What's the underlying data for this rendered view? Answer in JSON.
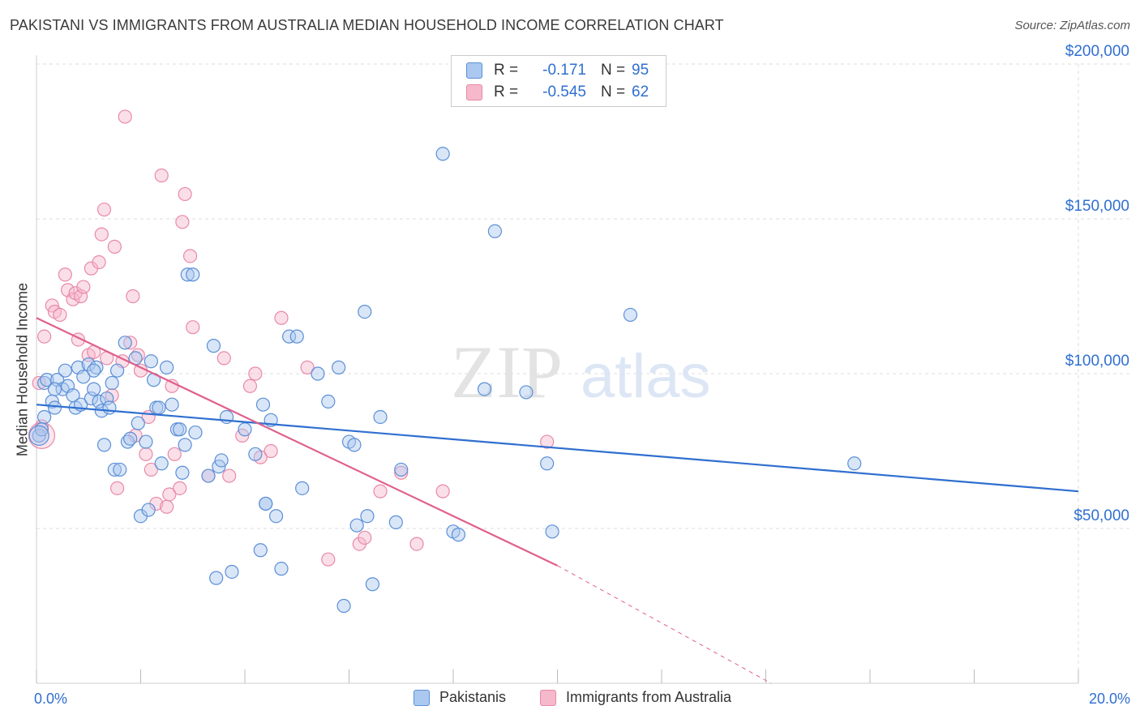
{
  "header": {
    "title": "PAKISTANI VS IMMIGRANTS FROM AUSTRALIA MEDIAN HOUSEHOLD INCOME CORRELATION CHART",
    "source": "Source: ZipAtlas.com"
  },
  "legend": {
    "rows": [
      {
        "r_label": "R =",
        "r_value": "-0.171",
        "n_label": "N =",
        "n_value": "95"
      },
      {
        "r_label": "R =",
        "r_value": "-0.545",
        "n_label": "N =",
        "n_value": "62"
      }
    ],
    "series_names": [
      "Pakistanis",
      "Immigrants from Australia"
    ]
  },
  "watermark": {
    "part1": "ZIP",
    "part2": "atlas"
  },
  "colors": {
    "blue_fill": "#aac8f0",
    "blue_stroke": "#5b8fd6",
    "blue_line": "#2f6fd0",
    "pink_fill": "#f6b8cb",
    "pink_stroke": "#e889a8",
    "pink_line": "#e0608b",
    "tick_text": "#2f6fd0",
    "grid": "#dddddd"
  },
  "chart_data": {
    "type": "scatter",
    "title": "PAKISTANI VS IMMIGRANTS FROM AUSTRALIA MEDIAN HOUSEHOLD INCOME CORRELATION CHART",
    "xlabel": "",
    "ylabel": "Median Household Income",
    "xlim": [
      0,
      20
    ],
    "ylim": [
      0,
      200000
    ],
    "x_tick_labels": [
      "0.0%",
      "20.0%"
    ],
    "y_ticks": [
      50000,
      100000,
      150000,
      200000
    ],
    "y_tick_labels": [
      "$50,000",
      "$100,000",
      "$150,000",
      "$200,000"
    ],
    "grid": true,
    "legend_position": "top-center",
    "series": [
      {
        "name": "Pakistanis",
        "r": -0.171,
        "n": 95,
        "trend": {
          "x": [
            0,
            20
          ],
          "y": [
            90000,
            62000
          ]
        },
        "points": [
          [
            0.05,
            80000
          ],
          [
            0.1,
            82000
          ],
          [
            0.15,
            97000
          ],
          [
            0.2,
            98000
          ],
          [
            0.3,
            91000
          ],
          [
            0.35,
            89000
          ],
          [
            0.4,
            98000
          ],
          [
            0.5,
            95000
          ],
          [
            0.55,
            101000
          ],
          [
            0.6,
            96000
          ],
          [
            0.7,
            93000
          ],
          [
            0.75,
            89000
          ],
          [
            0.8,
            102000
          ],
          [
            0.85,
            90000
          ],
          [
            0.9,
            99000
          ],
          [
            1.0,
            103000
          ],
          [
            1.05,
            92000
          ],
          [
            1.1,
            95000
          ],
          [
            1.15,
            102000
          ],
          [
            1.2,
            91000
          ],
          [
            1.25,
            88000
          ],
          [
            1.3,
            77000
          ],
          [
            1.35,
            92000
          ],
          [
            1.4,
            89000
          ],
          [
            1.45,
            97000
          ],
          [
            1.5,
            69000
          ],
          [
            1.55,
            101000
          ],
          [
            1.6,
            69000
          ],
          [
            1.7,
            110000
          ],
          [
            1.75,
            78000
          ],
          [
            1.8,
            79000
          ],
          [
            1.9,
            105000
          ],
          [
            1.95,
            84000
          ],
          [
            2.0,
            54000
          ],
          [
            2.1,
            78000
          ],
          [
            2.15,
            56000
          ],
          [
            2.2,
            104000
          ],
          [
            2.25,
            98000
          ],
          [
            2.3,
            89000
          ],
          [
            2.35,
            89000
          ],
          [
            2.4,
            71000
          ],
          [
            2.5,
            102000
          ],
          [
            2.6,
            90000
          ],
          [
            2.7,
            82000
          ],
          [
            2.75,
            82000
          ],
          [
            2.8,
            68000
          ],
          [
            2.85,
            77000
          ],
          [
            2.9,
            132000
          ],
          [
            3.0,
            132000
          ],
          [
            3.05,
            81000
          ],
          [
            3.3,
            67000
          ],
          [
            3.4,
            109000
          ],
          [
            3.45,
            34000
          ],
          [
            3.5,
            70000
          ],
          [
            3.55,
            72000
          ],
          [
            3.65,
            86000
          ],
          [
            3.75,
            36000
          ],
          [
            4.0,
            82000
          ],
          [
            4.2,
            74000
          ],
          [
            4.3,
            43000
          ],
          [
            4.35,
            90000
          ],
          [
            4.4,
            58000
          ],
          [
            4.5,
            85000
          ],
          [
            4.6,
            54000
          ],
          [
            4.7,
            37000
          ],
          [
            4.85,
            112000
          ],
          [
            5.0,
            112000
          ],
          [
            5.1,
            63000
          ],
          [
            5.4,
            100000
          ],
          [
            5.6,
            91000
          ],
          [
            5.8,
            102000
          ],
          [
            5.9,
            25000
          ],
          [
            6.0,
            78000
          ],
          [
            6.1,
            77000
          ],
          [
            6.15,
            51000
          ],
          [
            6.3,
            120000
          ],
          [
            6.35,
            54000
          ],
          [
            6.45,
            32000
          ],
          [
            6.6,
            86000
          ],
          [
            6.9,
            52000
          ],
          [
            7.0,
            69000
          ],
          [
            7.8,
            171000
          ],
          [
            8.0,
            49000
          ],
          [
            8.1,
            48000
          ],
          [
            8.6,
            95000
          ],
          [
            8.8,
            146000
          ],
          [
            9.4,
            94000
          ],
          [
            9.8,
            71000
          ],
          [
            9.9,
            49000
          ],
          [
            11.4,
            119000
          ],
          [
            15.7,
            71000
          ],
          [
            0.15,
            86000
          ],
          [
            0.35,
            95000
          ],
          [
            1.1,
            101000
          ],
          [
            4.4,
            58000
          ]
        ]
      },
      {
        "name": "Immigrants from Australia",
        "r": -0.545,
        "n": 62,
        "trend": {
          "x": [
            0,
            10
          ],
          "y": [
            118000,
            38000
          ]
        },
        "trend_extension": {
          "x": [
            10,
            14.1
          ],
          "y": [
            38000,
            0
          ]
        },
        "points": [
          [
            0.05,
            97000
          ],
          [
            0.1,
            83000
          ],
          [
            0.15,
            112000
          ],
          [
            0.3,
            122000
          ],
          [
            0.35,
            120000
          ],
          [
            0.45,
            119000
          ],
          [
            0.55,
            132000
          ],
          [
            0.6,
            127000
          ],
          [
            0.7,
            124000
          ],
          [
            0.75,
            126000
          ],
          [
            0.8,
            111000
          ],
          [
            0.85,
            125000
          ],
          [
            0.9,
            128000
          ],
          [
            1.0,
            106000
          ],
          [
            1.05,
            134000
          ],
          [
            1.1,
            107000
          ],
          [
            1.2,
            136000
          ],
          [
            1.25,
            145000
          ],
          [
            1.3,
            153000
          ],
          [
            1.35,
            105000
          ],
          [
            1.45,
            93000
          ],
          [
            1.5,
            141000
          ],
          [
            1.55,
            63000
          ],
          [
            1.65,
            104000
          ],
          [
            1.7,
            183000
          ],
          [
            1.8,
            110000
          ],
          [
            1.85,
            125000
          ],
          [
            1.9,
            80000
          ],
          [
            1.95,
            106000
          ],
          [
            2.0,
            101000
          ],
          [
            2.1,
            74000
          ],
          [
            2.15,
            86000
          ],
          [
            2.2,
            69000
          ],
          [
            2.3,
            58000
          ],
          [
            2.4,
            164000
          ],
          [
            2.5,
            57000
          ],
          [
            2.55,
            61000
          ],
          [
            2.6,
            96000
          ],
          [
            2.65,
            74000
          ],
          [
            2.75,
            63000
          ],
          [
            2.8,
            149000
          ],
          [
            2.85,
            158000
          ],
          [
            2.95,
            138000
          ],
          [
            3.0,
            115000
          ],
          [
            3.3,
            67000
          ],
          [
            3.6,
            105000
          ],
          [
            3.7,
            67000
          ],
          [
            3.95,
            80000
          ],
          [
            4.1,
            96000
          ],
          [
            4.2,
            100000
          ],
          [
            4.3,
            73000
          ],
          [
            4.5,
            75000
          ],
          [
            4.7,
            118000
          ],
          [
            5.2,
            102000
          ],
          [
            5.6,
            40000
          ],
          [
            6.2,
            45000
          ],
          [
            6.3,
            47000
          ],
          [
            6.6,
            62000
          ],
          [
            7.0,
            68000
          ],
          [
            7.3,
            45000
          ],
          [
            7.8,
            62000
          ],
          [
            9.8,
            78000
          ]
        ]
      }
    ]
  }
}
